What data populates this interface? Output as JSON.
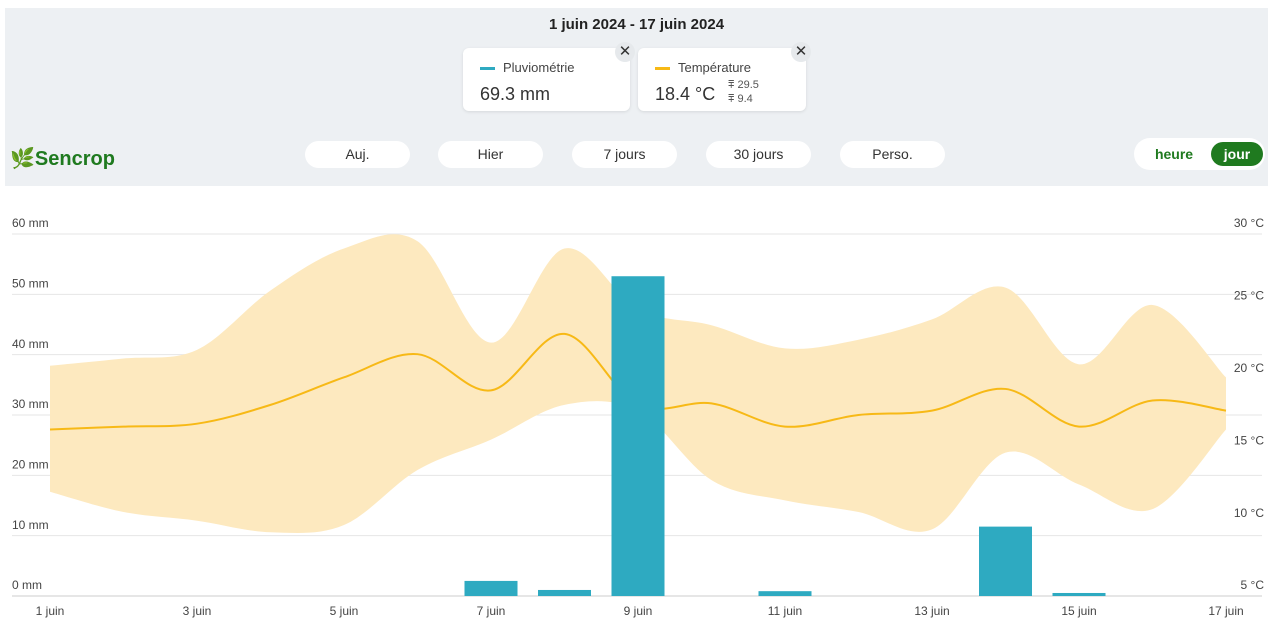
{
  "header": {
    "title": "1 juin 2024 - 17 juin 2024",
    "logo": "Sencrop",
    "cards": [
      {
        "value": "69.3 mm"
      },
      {
        "value": "18.4 °C",
        "max": "29.5",
        "min": "9.4"
      }
    ],
    "periods": [
      "Auj.",
      "Hier",
      "7 jours",
      "30 jours",
      "Perso."
    ],
    "toggle": [
      "heure",
      "jour"
    ]
  },
  "chart_data": {
    "type": "bar",
    "categories": [
      "1 juin",
      null,
      "3 juin",
      null,
      "5 juin",
      null,
      "7 juin",
      null,
      "9 juin",
      null,
      "11 juin",
      null,
      "13 juin",
      null,
      "15 juin",
      null,
      "17 juin"
    ],
    "series": [
      {
        "name": "Pluviométrie",
        "type": "bar",
        "color": "#2eaac1",
        "values": [
          0,
          0,
          0,
          0,
          0,
          0,
          2.5,
          1,
          53,
          0,
          0.8,
          0,
          0,
          11.5,
          0.5,
          0,
          0
        ]
      },
      {
        "name": "Température",
        "type": "line",
        "axis": "y2",
        "color": "#f7b916",
        "band_color": "#fde9bf",
        "values": [
          16.5,
          16.7,
          16.9,
          18.2,
          20.1,
          21.7,
          19.2,
          23.1,
          18.2,
          18.3,
          16.7,
          17.5,
          17.8,
          19.3,
          16.7,
          18.5,
          17.8
        ],
        "max_values": [
          20.9,
          21.4,
          22.0,
          26.1,
          29.0,
          29.5,
          22.5,
          29.0,
          24.8,
          23.7,
          22.1,
          22.7,
          24.1,
          26.3,
          21.0,
          25.1,
          20.1
        ],
        "min_values": [
          12.2,
          10.8,
          10.2,
          9.4,
          9.9,
          13.7,
          15.8,
          18.2,
          17.8,
          13.0,
          11.6,
          10.8,
          9.6,
          14.9,
          12.7,
          11.0,
          16.5
        ]
      }
    ],
    "ylim": [
      0,
      60
    ],
    "yticks": [
      {
        "value": 0,
        "label": "0 mm"
      },
      {
        "value": 10,
        "label": "10 mm"
      },
      {
        "value": 20,
        "label": "20 mm"
      },
      {
        "value": 30,
        "label": "30 mm"
      },
      {
        "value": 40,
        "label": "40 mm"
      },
      {
        "value": 50,
        "label": "50 mm"
      },
      {
        "value": 60,
        "label": "60 mm"
      }
    ],
    "y2lim": [
      5,
      30
    ],
    "y2ticks": [
      {
        "value": 5,
        "label": "5 °C"
      },
      {
        "value": 10,
        "label": "10 °C"
      },
      {
        "value": 15,
        "label": "15 °C"
      },
      {
        "value": 20,
        "label": "20 °C"
      },
      {
        "value": 25,
        "label": "25 °C"
      },
      {
        "value": 30,
        "label": "30 °C"
      }
    ],
    "grid": true
  }
}
